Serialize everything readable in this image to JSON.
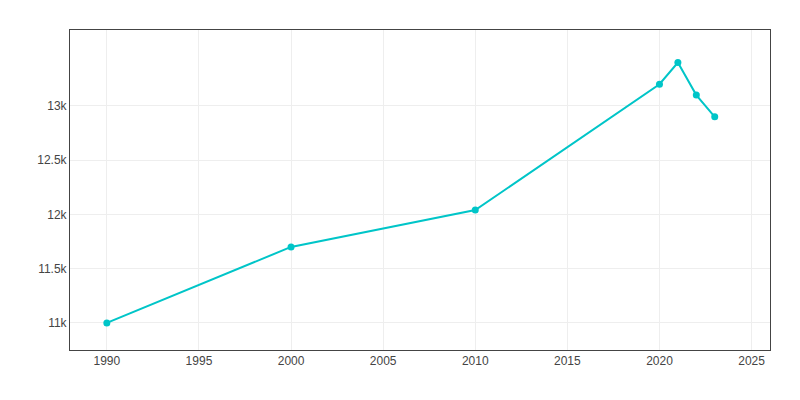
{
  "chart_data": {
    "type": "line",
    "x": [
      1990,
      2000,
      2010,
      2020,
      2021,
      2022,
      2023
    ],
    "values": [
      11000,
      11700,
      12040,
      13200,
      13400,
      13100,
      12900
    ],
    "color": "#00C5C8",
    "marker": "circle",
    "xlim": [
      1988,
      2026
    ],
    "xticks": [
      1990,
      1995,
      2000,
      2005,
      2010,
      2015,
      2020,
      2025
    ],
    "ylim": [
      10750,
      13700
    ],
    "yticks": [
      {
        "value": 11000,
        "label": "11k"
      },
      {
        "value": 11500,
        "label": "11.5k"
      },
      {
        "value": 12000,
        "label": "12k"
      },
      {
        "value": 12500,
        "label": "12.5k"
      },
      {
        "value": 13000,
        "label": "13k"
      }
    ],
    "grid": true
  }
}
